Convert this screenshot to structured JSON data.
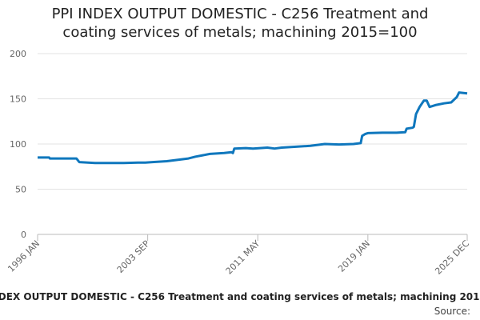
{
  "chart_data": {
    "type": "line",
    "title": "PPI INDEX OUTPUT DOMESTIC - C256 Treatment and coating services of metals; machining 2015=100",
    "source_label": "Source:",
    "x": [
      1996.0,
      1996.8,
      1996.85,
      1998.7,
      1998.9,
      2000.0,
      2001.0,
      2002.0,
      2003.0,
      2003.5,
      2004.0,
      2005.0,
      2006.0,
      2006.5,
      2007.0,
      2008.0,
      2009.0,
      2009.5,
      2009.6,
      2009.7,
      2010.5,
      2011.0,
      2012.0,
      2012.5,
      2013.0,
      2014.0,
      2015.0,
      2016.0,
      2017.0,
      2018.0,
      2018.5,
      2018.6,
      2018.8,
      2019.0,
      2020.0,
      2021.0,
      2021.6,
      2021.7,
      2022.1,
      2022.2,
      2022.35,
      2022.6,
      2022.9,
      2023.1,
      2023.3,
      2023.7,
      2024.3,
      2024.8,
      2025.2,
      2025.35,
      2025.917
    ],
    "series": [
      {
        "name": "PPI INDEX OUTPUT DOMESTIC - C256",
        "color": "#0f77bd",
        "values": [
          85,
          85,
          84,
          84,
          80,
          79,
          79,
          79,
          79.5,
          79.5,
          80,
          81,
          83,
          84,
          86,
          89,
          90,
          91,
          90,
          95,
          95.5,
          95,
          96,
          95,
          96,
          97,
          98,
          100,
          99.5,
          100,
          101,
          109,
          111,
          112,
          112.5,
          112.5,
          113,
          117,
          118,
          119,
          133,
          141,
          148,
          148,
          141,
          143,
          145,
          146,
          152,
          157,
          156
        ]
      }
    ],
    "xlim": [
      1996.0,
      2025.917
    ],
    "xticks": [
      {
        "value": 1996.0,
        "label": "1996 JAN"
      },
      {
        "value": 2003.667,
        "label": "2003 SEP"
      },
      {
        "value": 2011.333,
        "label": "2011 MAY"
      },
      {
        "value": 2019.0,
        "label": "2019 JAN"
      },
      {
        "value": 2025.917,
        "label": "2025 DEC"
      }
    ],
    "ylim": [
      0,
      200
    ],
    "yticks": [
      0,
      50,
      100,
      150,
      200
    ],
    "grid": true
  }
}
